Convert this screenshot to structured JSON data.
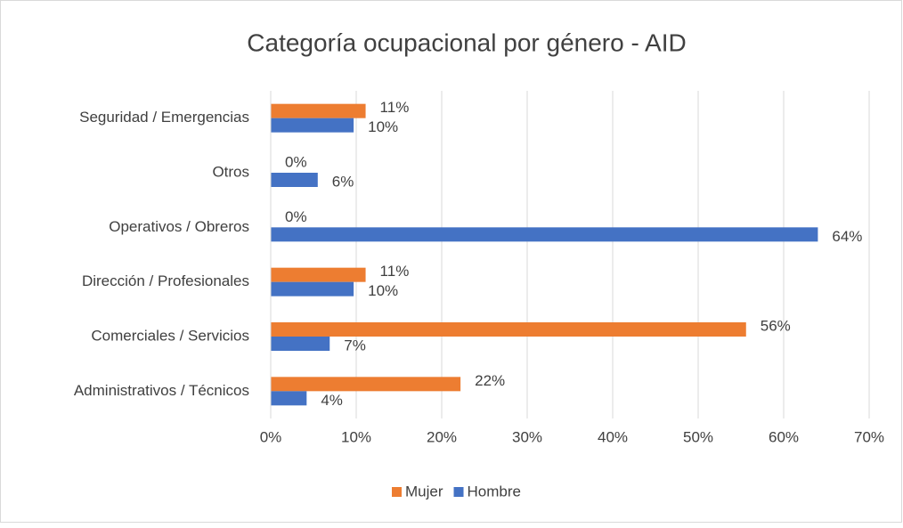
{
  "chart_data": {
    "type": "barh",
    "title": "Categoría ocupacional por género - AID",
    "categories": [
      "Seguridad / Emergencias",
      "Otros",
      "Operativos / Obreros",
      "Dirección / Profesionales",
      "Comerciales / Servicios",
      "Administrativos / Técnicos"
    ],
    "series": [
      {
        "name": "Mujer",
        "color": "#ed7d31",
        "values": [
          11.1,
          0,
          0,
          11.1,
          55.6,
          22.2
        ],
        "value_labels": [
          "11%",
          "0%",
          "0%",
          "11%",
          "56%",
          "22%"
        ]
      },
      {
        "name": "Hombre",
        "color": "#4472c4",
        "values": [
          9.7,
          5.5,
          64.0,
          9.7,
          6.9,
          4.2
        ],
        "value_labels": [
          "10%",
          "6%",
          "64%",
          "10%",
          "7%",
          "4%"
        ]
      }
    ],
    "xlim": [
      0,
      70
    ],
    "xticks": [
      {
        "value": 0,
        "label": "0%"
      },
      {
        "value": 10,
        "label": "10%"
      },
      {
        "value": 20,
        "label": "20%"
      },
      {
        "value": 30,
        "label": "30%"
      },
      {
        "value": 40,
        "label": "40%"
      },
      {
        "value": 50,
        "label": "50%"
      },
      {
        "value": 60,
        "label": "60%"
      },
      {
        "value": 70,
        "label": "70%"
      }
    ],
    "grid": true,
    "legend": "bottom"
  }
}
